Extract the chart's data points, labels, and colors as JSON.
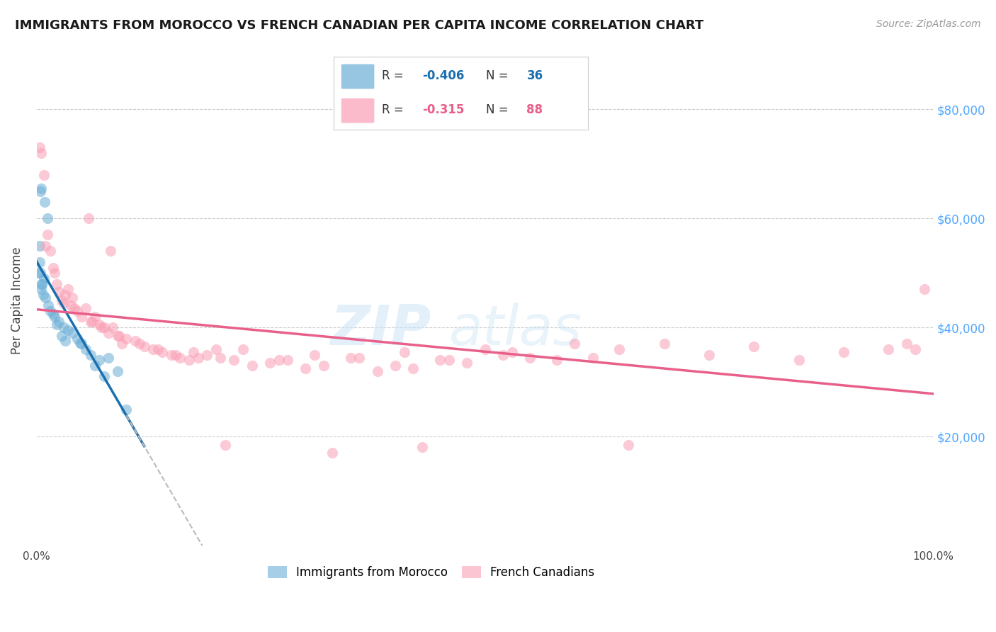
{
  "title": "IMMIGRANTS FROM MOROCCO VS FRENCH CANADIAN PER CAPITA INCOME CORRELATION CHART",
  "source": "Source: ZipAtlas.com",
  "ylabel": "Per Capita Income",
  "y_tick_labels": [
    "$20,000",
    "$40,000",
    "$60,000",
    "$80,000"
  ],
  "y_tick_values": [
    20000,
    40000,
    60000,
    80000
  ],
  "y_right_color": "#4da6ff",
  "blue_color": "#6baed6",
  "pink_color": "#fa9fb5",
  "blue_line_color": "#1a6faf",
  "pink_line_color": "#e8608a",
  "background_color": "#ffffff",
  "scatter_blue_x": [
    0.2,
    0.4,
    0.5,
    0.9,
    1.2,
    0.3,
    0.3,
    0.4,
    0.6,
    0.5,
    0.7,
    1.0,
    1.5,
    2.0,
    2.5,
    3.0,
    3.5,
    4.0,
    4.5,
    5.0,
    6.0,
    7.0,
    8.0,
    2.2,
    1.8,
    0.8,
    0.6,
    1.3,
    2.8,
    3.2,
    5.5,
    4.8,
    9.0,
    6.5,
    7.5,
    10.0
  ],
  "scatter_blue_y": [
    50000,
    65000,
    65500,
    63000,
    60000,
    55000,
    52000,
    50000,
    48000,
    47000,
    46000,
    45500,
    43000,
    42000,
    41000,
    40000,
    39500,
    39000,
    38000,
    37000,
    35000,
    34000,
    34500,
    40500,
    42500,
    49000,
    48000,
    44000,
    38500,
    37500,
    36000,
    37200,
    32000,
    33000,
    31000,
    25000
  ],
  "scatter_pink_x": [
    0.3,
    0.5,
    0.8,
    1.0,
    1.2,
    1.5,
    1.8,
    2.0,
    2.2,
    2.5,
    2.8,
    3.0,
    3.2,
    3.5,
    4.0,
    4.5,
    5.0,
    5.5,
    6.0,
    6.5,
    7.0,
    7.5,
    8.0,
    8.5,
    9.0,
    9.5,
    10.0,
    11.0,
    12.0,
    13.0,
    14.0,
    15.0,
    16.0,
    17.0,
    18.0,
    19.0,
    20.0,
    22.0,
    24.0,
    26.0,
    28.0,
    30.0,
    32.0,
    35.0,
    38.0,
    40.0,
    42.0,
    45.0,
    48.0,
    50.0,
    52.0,
    55.0,
    58.0,
    60.0,
    3.8,
    4.2,
    6.2,
    7.2,
    9.2,
    11.5,
    13.5,
    15.5,
    17.5,
    20.5,
    23.0,
    27.0,
    31.0,
    36.0,
    41.0,
    46.0,
    53.0,
    62.0,
    65.0,
    70.0,
    75.0,
    80.0,
    85.0,
    90.0,
    95.0,
    97.0,
    98.0,
    99.0,
    5.8,
    8.2,
    21.0,
    43.0,
    66.0,
    33.0
  ],
  "scatter_pink_y": [
    73000,
    72000,
    68000,
    55000,
    57000,
    54000,
    51000,
    50000,
    48000,
    46500,
    45000,
    44500,
    46000,
    47000,
    45500,
    43000,
    42000,
    43500,
    41000,
    42000,
    40500,
    40000,
    39000,
    40000,
    38500,
    37000,
    38000,
    37500,
    36500,
    36000,
    35500,
    35000,
    34500,
    34000,
    34500,
    35000,
    36000,
    34000,
    33000,
    33500,
    34000,
    32500,
    33000,
    34500,
    32000,
    33000,
    32500,
    34000,
    33500,
    36000,
    35000,
    34500,
    34000,
    37000,
    44000,
    43500,
    41000,
    40000,
    38500,
    37000,
    36000,
    35000,
    35500,
    34500,
    36000,
    34000,
    35000,
    34500,
    35500,
    34000,
    35500,
    34500,
    36000,
    37000,
    35000,
    36500,
    34000,
    35500,
    36000,
    37000,
    36000,
    47000,
    60000,
    54000,
    18500,
    18000,
    18500,
    17000
  ]
}
